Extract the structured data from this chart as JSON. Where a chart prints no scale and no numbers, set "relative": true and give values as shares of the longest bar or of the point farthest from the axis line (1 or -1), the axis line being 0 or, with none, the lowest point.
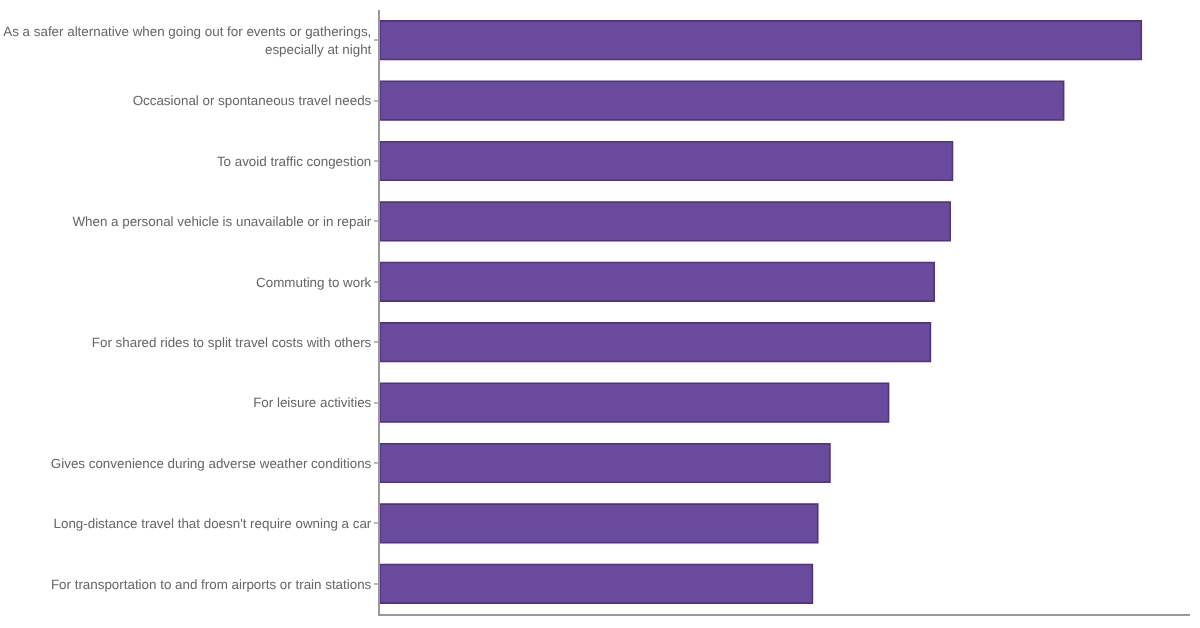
{
  "chart_data": {
    "type": "bar",
    "orientation": "horizontal",
    "relative": true,
    "categories": [
      "As a safer alternative when going out for events or gatherings, especially at night",
      "Occasional or spontaneous travel needs",
      "To avoid traffic congestion",
      "When a personal vehicle is unavailable or in repair",
      "Commuting to work",
      "For shared rides to split travel costs with others",
      "For leisure activities",
      "Gives convenience during adverse weather conditions",
      "Long-distance travel that doesn't require owning a car",
      "For transportation to and from airports or train stations"
    ],
    "values": [
      1,
      0.898,
      0.752,
      0.749,
      0.728,
      0.723,
      0.668,
      0.591,
      0.575,
      0.568
    ],
    "color": "#6a4a9c",
    "grid": false,
    "legend": false
  }
}
